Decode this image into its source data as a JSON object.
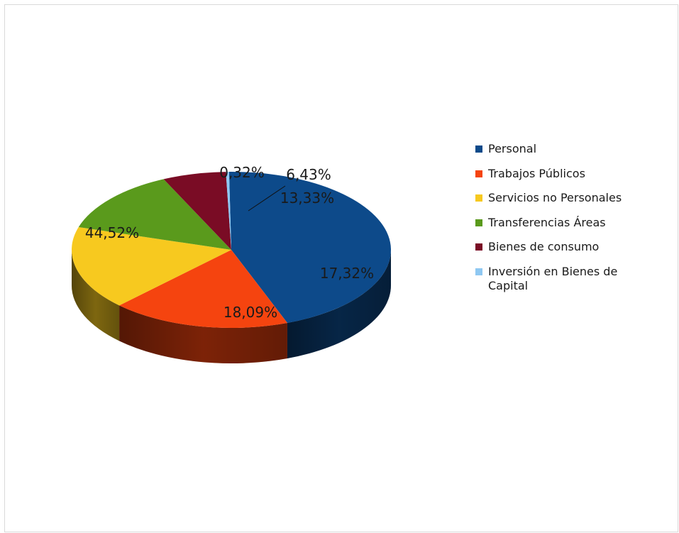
{
  "chart_data": {
    "type": "pie",
    "title": "",
    "legend_position": "right",
    "slices": [
      {
        "label": "Personal",
        "value": 44.52,
        "display": "44,52%",
        "color": "#0d4a8a"
      },
      {
        "label": "Trabajos Públicos",
        "value": 18.09,
        "display": "18,09%",
        "color": "#f5440f"
      },
      {
        "label": "Servicios no Personales",
        "value": 17.32,
        "display": "17,32%",
        "color": "#f7c91f"
      },
      {
        "label": "Transferencias Áreas",
        "value": 13.33,
        "display": "13,33%",
        "color": "#5a9a1c"
      },
      {
        "label": "Bienes de consumo",
        "value": 6.43,
        "display": "6,43%",
        "color": "#7a0c25"
      },
      {
        "label": "Inversión en Bienes de Capital",
        "value": 0.32,
        "display": "0,32%",
        "color": "#8fc8f2"
      }
    ]
  }
}
